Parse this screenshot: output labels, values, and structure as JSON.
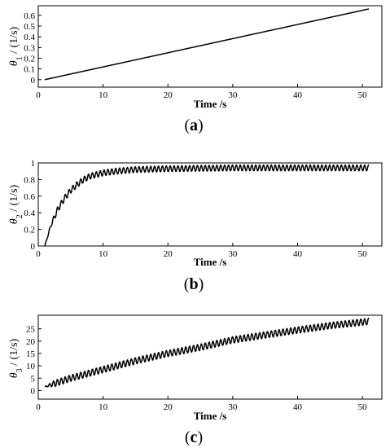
{
  "chart_data": [
    {
      "type": "line",
      "panel": "a",
      "caption": "a",
      "xlabel": "Time /s",
      "ylabel_symbol": "θ",
      "ylabel_subscript": "1",
      "ylabel_unit": " / (1/s)",
      "xlim": [
        0,
        53
      ],
      "ylim": [
        -0.07,
        0.69
      ],
      "xticks": [
        0,
        10,
        20,
        30,
        40,
        50
      ],
      "yticks": [
        0,
        0.1,
        0.2,
        0.3,
        0.4,
        0.5,
        0.6
      ],
      "xtick_labels": [
        "0",
        "10",
        "20",
        "30",
        "40",
        "50"
      ],
      "ytick_labels": [
        "0",
        "0.1",
        "0.2",
        "0.3",
        "0.4",
        "0.5",
        "0.6"
      ],
      "grid": false,
      "series": [
        {
          "x": [
            1,
            51
          ],
          "y": [
            0.0,
            0.66
          ],
          "oscillation": {
            "amplitude": 0,
            "period": 1
          }
        }
      ]
    },
    {
      "type": "line",
      "panel": "b",
      "caption": "b",
      "xlabel": "Time /s",
      "ylabel_symbol": "θ",
      "ylabel_subscript": "2",
      "ylabel_unit": " / (1/s)",
      "xlim": [
        0,
        53
      ],
      "ylim": [
        0,
        1
      ],
      "xticks": [
        0,
        10,
        20,
        30,
        40,
        50
      ],
      "yticks": [
        0,
        0.2,
        0.4,
        0.6,
        0.8,
        1
      ],
      "xtick_labels": [
        "0",
        "10",
        "20",
        "30",
        "40",
        "50"
      ],
      "ytick_labels": [
        "0",
        "0.2",
        "0.4",
        "0.6",
        "0.8",
        "1"
      ],
      "grid": false,
      "series": [
        {
          "x": [
            1,
            2,
            3,
            4,
            5,
            6,
            7,
            8,
            10,
            12,
            15,
            20,
            25,
            30,
            40,
            51
          ],
          "y": [
            0.0,
            0.26,
            0.44,
            0.57,
            0.67,
            0.74,
            0.8,
            0.84,
            0.88,
            0.9,
            0.92,
            0.93,
            0.935,
            0.94,
            0.94,
            0.94
          ],
          "oscillation": {
            "amplitude": 0.035,
            "period": 0.6
          }
        }
      ]
    },
    {
      "type": "line",
      "panel": "c",
      "caption": "c",
      "xlabel": "Time /s",
      "ylabel_symbol": "θ",
      "ylabel_subscript": "3",
      "ylabel_unit": " / (1/s)",
      "xlim": [
        0,
        53
      ],
      "ylim": [
        -3.5,
        30.5
      ],
      "xticks": [
        0,
        10,
        20,
        30,
        40,
        50
      ],
      "yticks": [
        0,
        5,
        10,
        15,
        20,
        25
      ],
      "xtick_labels": [
        "0",
        "10",
        "20",
        "30",
        "40",
        "50"
      ],
      "ytick_labels": [
        "0",
        "5",
        "10",
        "15",
        "20",
        "25"
      ],
      "grid": false,
      "series": [
        {
          "x": [
            1,
            5,
            10,
            15,
            20,
            25,
            30,
            35,
            40,
            45,
            51
          ],
          "y": [
            1.5,
            5.0,
            8.5,
            12.0,
            15.0,
            17.5,
            20.5,
            22.5,
            24.5,
            26.3,
            28.0
          ],
          "oscillation": {
            "amplitude": 1.3,
            "period": 0.6
          }
        }
      ]
    }
  ]
}
